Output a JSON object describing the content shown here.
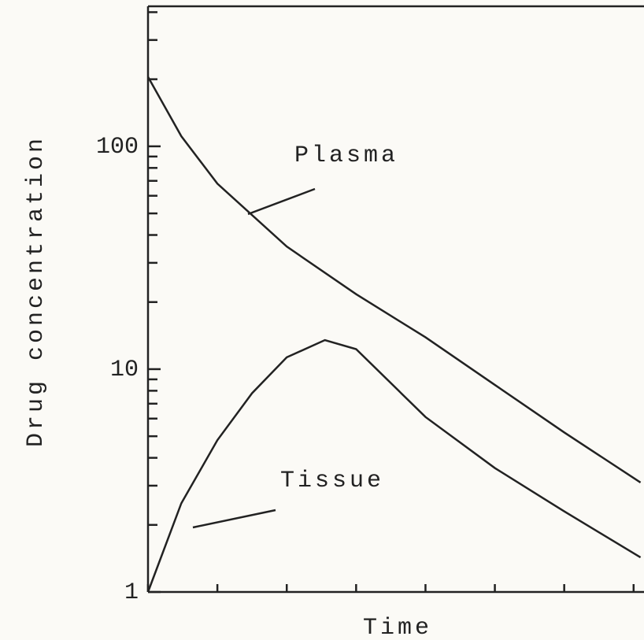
{
  "chart_data": {
    "type": "line",
    "xlabel": "Time",
    "ylabel": "Drug concentration",
    "log_y": true,
    "xlim": [
      0,
      7.15
    ],
    "xticks": [
      0,
      1,
      2,
      3,
      4,
      5,
      6,
      7
    ],
    "ylim": [
      1,
      425
    ],
    "yticks": [
      1,
      10,
      100
    ],
    "minor_yticks": [
      2,
      3,
      4,
      5,
      6,
      7,
      8,
      9,
      20,
      30,
      40,
      50,
      60,
      70,
      80,
      90,
      200,
      300,
      400
    ],
    "series": [
      {
        "name": "Plasma",
        "color": "#222222",
        "x": [
          0,
          0.48,
          1,
          2,
          3,
          4,
          5,
          6,
          7.1
        ],
        "values": [
          205,
          111,
          68,
          35.5,
          21.7,
          13.9,
          8.5,
          5.2,
          3.1
        ]
      },
      {
        "name": "Tissue",
        "color": "#222222",
        "x": [
          0,
          0.48,
          1,
          1.5,
          2,
          2.55,
          3,
          4,
          5,
          6,
          7.1
        ],
        "values": [
          1,
          2.5,
          4.8,
          7.8,
          11.3,
          13.5,
          12.3,
          6.1,
          3.6,
          2.3,
          1.43
        ]
      }
    ]
  }
}
